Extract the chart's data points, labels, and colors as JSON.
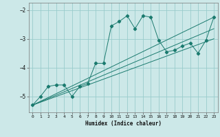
{
  "xlabel": "Humidex (Indice chaleur)",
  "bg_color": "#cce8e8",
  "grid_color": "#99cccc",
  "line_color": "#1a7a6e",
  "xlim": [
    -0.5,
    23.5
  ],
  "ylim": [
    -5.55,
    -1.75
  ],
  "yticks": [
    -5,
    -4,
    -3,
    -2
  ],
  "xticks": [
    0,
    1,
    2,
    3,
    4,
    5,
    6,
    7,
    8,
    9,
    10,
    11,
    12,
    13,
    14,
    15,
    16,
    17,
    18,
    19,
    20,
    21,
    22,
    23
  ],
  "series1_x": [
    0,
    1,
    2,
    3,
    4,
    5,
    6,
    7,
    8,
    9,
    10,
    11,
    12,
    13,
    14,
    15,
    16,
    17,
    18,
    19,
    20,
    21,
    22,
    23
  ],
  "series1_y": [
    -5.3,
    -5.0,
    -4.65,
    -4.6,
    -4.6,
    -5.0,
    -4.65,
    -4.55,
    -3.85,
    -3.85,
    -2.55,
    -2.4,
    -2.2,
    -2.65,
    -2.2,
    -2.25,
    -3.05,
    -3.45,
    -3.4,
    -3.25,
    -3.15,
    -3.5,
    -3.05,
    -2.25
  ],
  "line2_x": [
    0,
    23
  ],
  "line2_y": [
    -5.3,
    -2.25
  ],
  "line3_x": [
    0,
    23
  ],
  "line3_y": [
    -5.3,
    -2.65
  ],
  "line4_x": [
    0,
    23
  ],
  "line4_y": [
    -5.3,
    -3.0
  ]
}
